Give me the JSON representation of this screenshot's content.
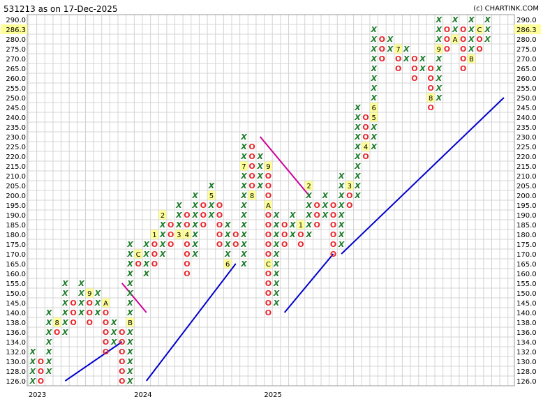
{
  "title": "531213 as on 17-Dec-2025",
  "credit": "(c) CHARTINK.COM",
  "colors": {
    "x_mark": "#1e7d2b",
    "o_mark": "#e8262b",
    "grid": "#d4d4d4",
    "month_marker_bg": "#ffff99",
    "current_price_bg": "#ffff99",
    "support_line": "#0000cc",
    "resistance_line": "#cc0099"
  },
  "chart_data": {
    "type": "point-and-figure",
    "box_size_note": "",
    "y_levels": [
      126.0,
      128.0,
      130.0,
      132.0,
      134.0,
      136.0,
      138.0,
      140.0,
      145.0,
      150.0,
      155.0,
      160.0,
      165.0,
      170.0,
      175.0,
      180.0,
      185.0,
      190.0,
      195.0,
      200.0,
      205.0,
      210.0,
      215.0,
      220.0,
      225.0,
      230.0,
      235.0,
      240.0,
      245.0,
      250.0,
      255.0,
      260.0,
      265.0,
      270.0,
      275.0,
      280.0,
      285.0,
      290.0
    ],
    "y_tick_labels": [
      "126.0",
      "128.0",
      "130.0",
      "132.0",
      "134.0",
      "136.0",
      "138.0",
      "140.0",
      "145.0",
      "150.0",
      "155.0",
      "160.0",
      "165.0",
      "170.0",
      "175.0",
      "180.0",
      "185.0",
      "190.0",
      "195.0",
      "200.0",
      "205.0",
      "210.0",
      "215.0",
      "220.0",
      "225.0",
      "230.0",
      "235.0",
      "240.0",
      "245.0",
      "250.0",
      "255.0",
      "260.0",
      "265.0",
      "270.0",
      "275.0",
      "280.0",
      "285.0",
      "290.0"
    ],
    "current_price": "286.3",
    "current_price_value": 286.3,
    "x_labels": [
      {
        "column": 1,
        "text": "2023"
      },
      {
        "column": 14,
        "text": "2024"
      },
      {
        "column": 30,
        "text": "2025"
      }
    ],
    "columns": [
      {
        "type": "X",
        "low": 126.0,
        "high": 132.0,
        "markers": []
      },
      {
        "type": "O",
        "low": 126.0,
        "high": 130.0,
        "markers": []
      },
      {
        "type": "X",
        "low": 128.0,
        "high": 140.0,
        "markers": []
      },
      {
        "type": "O",
        "low": 136.0,
        "high": 138.0,
        "markers": [
          {
            "value": 138.0,
            "label": "8"
          }
        ]
      },
      {
        "type": "X",
        "low": 136.0,
        "high": 155.0,
        "markers": []
      },
      {
        "type": "O",
        "low": 138.0,
        "high": 145.0,
        "markers": []
      },
      {
        "type": "X",
        "low": 140.0,
        "high": 155.0,
        "markers": []
      },
      {
        "type": "O",
        "low": 138.0,
        "high": 150.0,
        "markers": [
          {
            "value": 150.0,
            "label": "9"
          }
        ]
      },
      {
        "type": "X",
        "low": 140.0,
        "high": 150.0,
        "markers": []
      },
      {
        "type": "O",
        "low": 132.0,
        "high": 145.0,
        "markers": [
          {
            "value": 145.0,
            "label": "A"
          }
        ]
      },
      {
        "type": "X",
        "low": 134.0,
        "high": 138.0,
        "markers": []
      },
      {
        "type": "O",
        "low": 126.0,
        "high": 136.0,
        "markers": []
      },
      {
        "type": "X",
        "low": 126.0,
        "high": 175.0,
        "markers": [
          {
            "value": 138.0,
            "label": "B"
          }
        ]
      },
      {
        "type": "O",
        "low": 165.0,
        "high": 170.0,
        "markers": [
          {
            "value": 170.0,
            "label": "C"
          }
        ]
      },
      {
        "type": "X",
        "low": 160.0,
        "high": 175.0,
        "markers": []
      },
      {
        "type": "O",
        "low": 165.0,
        "high": 175.0,
        "markers": [
          {
            "value": 180.0,
            "label": "1"
          }
        ]
      },
      {
        "type": "X",
        "low": 170.0,
        "high": 185.0,
        "markers": [
          {
            "value": 190.0,
            "label": "2"
          }
        ]
      },
      {
        "type": "O",
        "low": 175.0,
        "high": 185.0,
        "markers": []
      },
      {
        "type": "X",
        "low": 180.0,
        "high": 195.0,
        "markers": [
          {
            "value": 180.0,
            "label": "3"
          }
        ]
      },
      {
        "type": "O",
        "low": 160.0,
        "high": 190.0,
        "markers": [
          {
            "value": 180.0,
            "label": "4"
          }
        ]
      },
      {
        "type": "X",
        "low": 170.0,
        "high": 200.0,
        "markers": []
      },
      {
        "type": "O",
        "low": 185.0,
        "high": 195.0,
        "markers": []
      },
      {
        "type": "X",
        "low": 190.0,
        "high": 205.0,
        "markers": [
          {
            "value": 200.0,
            "label": "5"
          }
        ]
      },
      {
        "type": "O",
        "low": 175.0,
        "high": 195.0,
        "markers": []
      },
      {
        "type": "X",
        "low": 170.0,
        "high": 185.0,
        "markers": [
          {
            "value": 165.0,
            "label": "6"
          }
        ]
      },
      {
        "type": "O",
        "low": 175.0,
        "high": 180.0,
        "markers": []
      },
      {
        "type": "X",
        "low": 165.0,
        "high": 230.0,
        "markers": [
          {
            "value": 215.0,
            "label": "7"
          }
        ]
      },
      {
        "type": "O",
        "low": 205.0,
        "high": 225.0,
        "markers": [
          {
            "value": 200.0,
            "label": "8"
          }
        ]
      },
      {
        "type": "X",
        "low": 205.0,
        "high": 220.0,
        "markers": []
      },
      {
        "type": "O",
        "low": 140.0,
        "high": 215.0,
        "markers": [
          {
            "value": 215.0,
            "label": "9"
          },
          {
            "value": 195.0,
            "label": "A"
          },
          {
            "value": 165.0,
            "label": "C"
          }
        ]
      },
      {
        "type": "X",
        "low": 145.0,
        "high": 190.0,
        "markers": []
      },
      {
        "type": "O",
        "low": 175.0,
        "high": 185.0,
        "markers": []
      },
      {
        "type": "X",
        "low": 180.0,
        "high": 190.0,
        "markers": []
      },
      {
        "type": "O",
        "low": 175.0,
        "high": 185.0,
        "markers": [
          {
            "value": 185.0,
            "label": "1"
          }
        ]
      },
      {
        "type": "X",
        "low": 180.0,
        "high": 200.0,
        "markers": [
          {
            "value": 205.0,
            "label": "2"
          }
        ]
      },
      {
        "type": "O",
        "low": 185.0,
        "high": 195.0,
        "markers": []
      },
      {
        "type": "X",
        "low": 190.0,
        "high": 200.0,
        "markers": []
      },
      {
        "type": "O",
        "low": 170.0,
        "high": 195.0,
        "markers": []
      },
      {
        "type": "X",
        "low": 175.0,
        "high": 210.0,
        "markers": []
      },
      {
        "type": "O",
        "low": 195.0,
        "high": 205.0,
        "markers": [
          {
            "value": 205.0,
            "label": "3"
          }
        ]
      },
      {
        "type": "X",
        "low": 200.0,
        "high": 245.0,
        "markers": []
      },
      {
        "type": "O",
        "low": 220.0,
        "high": 240.0,
        "markers": [
          {
            "value": 225.0,
            "label": "4"
          }
        ]
      },
      {
        "type": "X",
        "low": 225.0,
        "high": 285.0,
        "markers": [
          {
            "value": 245.0,
            "label": "6"
          },
          {
            "value": 240.0,
            "label": "5"
          }
        ]
      },
      {
        "type": "O",
        "low": 270.0,
        "high": 280.0,
        "markers": []
      },
      {
        "type": "X",
        "low": 275.0,
        "high": 280.0,
        "markers": []
      },
      {
        "type": "O",
        "low": 265.0,
        "high": 275.0,
        "markers": [
          {
            "value": 275.0,
            "label": "7"
          }
        ]
      },
      {
        "type": "X",
        "low": 270.0,
        "high": 275.0,
        "markers": []
      },
      {
        "type": "O",
        "low": 260.0,
        "high": 270.0,
        "markers": []
      },
      {
        "type": "X",
        "low": 265.0,
        "high": 270.0,
        "markers": []
      },
      {
        "type": "O",
        "low": 245.0,
        "high": 265.0,
        "markers": [
          {
            "value": 250.0,
            "label": "8"
          }
        ]
      },
      {
        "type": "X",
        "low": 250.0,
        "high": 290.0,
        "markers": [
          {
            "value": 275.0,
            "label": "9"
          }
        ]
      },
      {
        "type": "O",
        "low": 275.0,
        "high": 285.0,
        "markers": []
      },
      {
        "type": "X",
        "low": 280.0,
        "high": 290.0,
        "markers": [
          {
            "value": 280.0,
            "label": "A"
          }
        ]
      },
      {
        "type": "O",
        "low": 265.0,
        "high": 285.0,
        "markers": []
      },
      {
        "type": "X",
        "low": 270.0,
        "high": 290.0,
        "markers": [
          {
            "value": 270.0,
            "label": "B"
          }
        ]
      },
      {
        "type": "O",
        "low": 275.0,
        "high": 285.0,
        "markers": [
          {
            "value": 285.0,
            "label": "C"
          }
        ]
      },
      {
        "type": "X",
        "low": 280.0,
        "high": 290.0,
        "markers": []
      }
    ],
    "trendlines": [
      {
        "kind": "support",
        "from": {
          "column": 4,
          "value": 126.0
        },
        "to": {
          "column": 11,
          "value": 134.0
        }
      },
      {
        "kind": "resistance",
        "from": {
          "column": 11,
          "value": 155.0
        },
        "to": {
          "column": 14,
          "value": 140.0
        }
      },
      {
        "kind": "support",
        "from": {
          "column": 14,
          "value": 126.0
        },
        "to": {
          "column": 25,
          "value": 165.0
        }
      },
      {
        "kind": "resistance",
        "from": {
          "column": 28,
          "value": 230.0
        },
        "to": {
          "column": 34,
          "value": 200.0
        }
      },
      {
        "kind": "support",
        "from": {
          "column": 31,
          "value": 140.0
        },
        "to": {
          "column": 37,
          "value": 170.0
        }
      },
      {
        "kind": "support",
        "from": {
          "column": 38,
          "value": 170.0
        },
        "to": {
          "column": 58,
          "value": 250.0
        }
      }
    ]
  }
}
